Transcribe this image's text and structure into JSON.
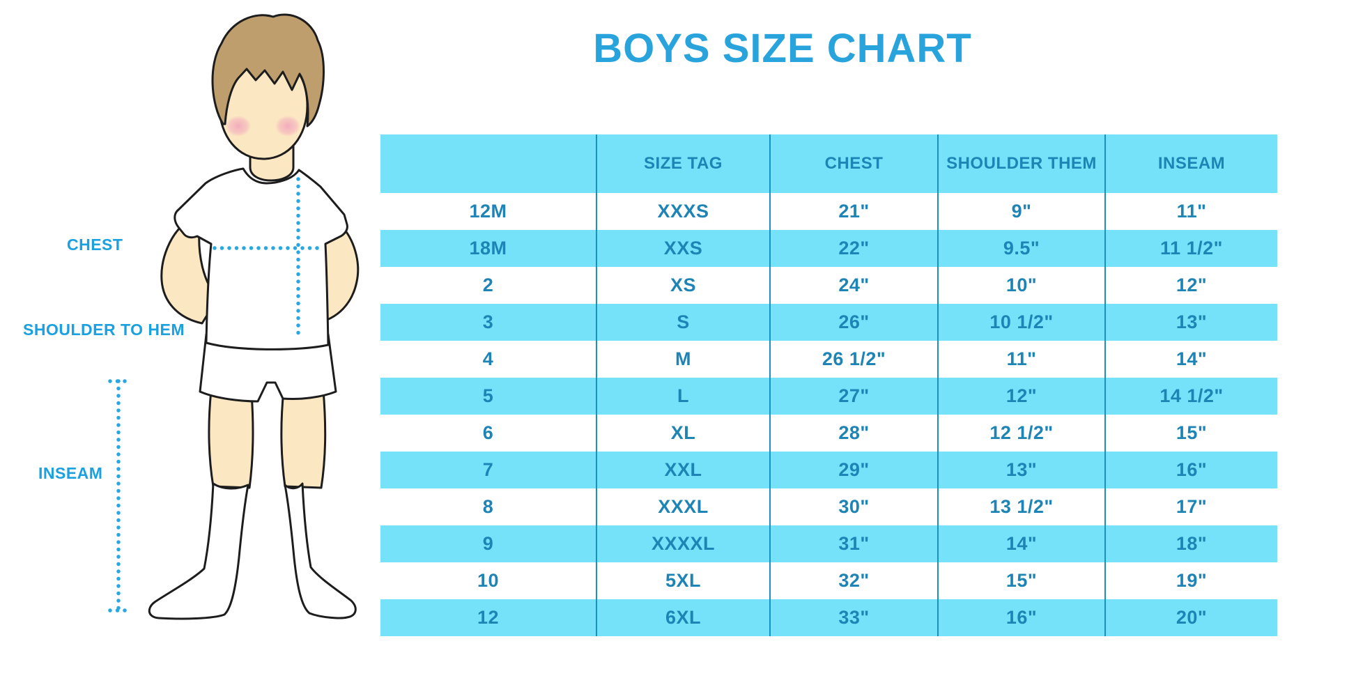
{
  "title": "BOYS SIZE CHART",
  "figure": {
    "labels": {
      "chest": "CHEST",
      "shoulder_to_hem": "SHOULDER TO HEM",
      "inseam": "INSEAM"
    }
  },
  "chart_data": {
    "type": "table",
    "title": "BOYS SIZE CHART",
    "columns": [
      "",
      "SIZE TAG",
      "CHEST",
      "SHOULDER THEM",
      "INSEAM"
    ],
    "rows": [
      [
        "12M",
        "XXXS",
        "21\"",
        "9\"",
        "11\""
      ],
      [
        "18M",
        "XXS",
        "22\"",
        "9.5\"",
        "11 1/2\""
      ],
      [
        "2",
        "XS",
        "24\"",
        "10\"",
        "12\""
      ],
      [
        "3",
        "S",
        "26\"",
        "10 1/2\"",
        "13\""
      ],
      [
        "4",
        "M",
        "26 1/2\"",
        "11\"",
        "14\""
      ],
      [
        "5",
        "L",
        "27\"",
        "12\"",
        "14 1/2\""
      ],
      [
        "6",
        "XL",
        "28\"",
        "12 1/2\"",
        "15\""
      ],
      [
        "7",
        "XXL",
        "29\"",
        "13\"",
        "16\""
      ],
      [
        "8",
        "XXXL",
        "30\"",
        "13 1/2\"",
        "17\""
      ],
      [
        "9",
        "XXXXL",
        "31\"",
        "14\"",
        "18\""
      ],
      [
        "10",
        "5XL",
        "32\"",
        "15\"",
        "19\""
      ],
      [
        "12",
        "6XL",
        "33\"",
        "16\"",
        "20\""
      ]
    ],
    "layout": {
      "striping": "alternate rows cyan",
      "grid": "vertical dividers only"
    }
  },
  "colors": {
    "title_blue": "#29A3DC",
    "label_blue": "#1BA0E0",
    "table_stripe_cyan": "#76E2F9",
    "table_text_teal": "#1D84B5",
    "table_divider": "#1691C1",
    "dotted_line": "#29A7E1",
    "skin": "#FBE7C2",
    "hair_brown": "#BF9E6E",
    "cheek_pink": "#F2A3BC"
  }
}
